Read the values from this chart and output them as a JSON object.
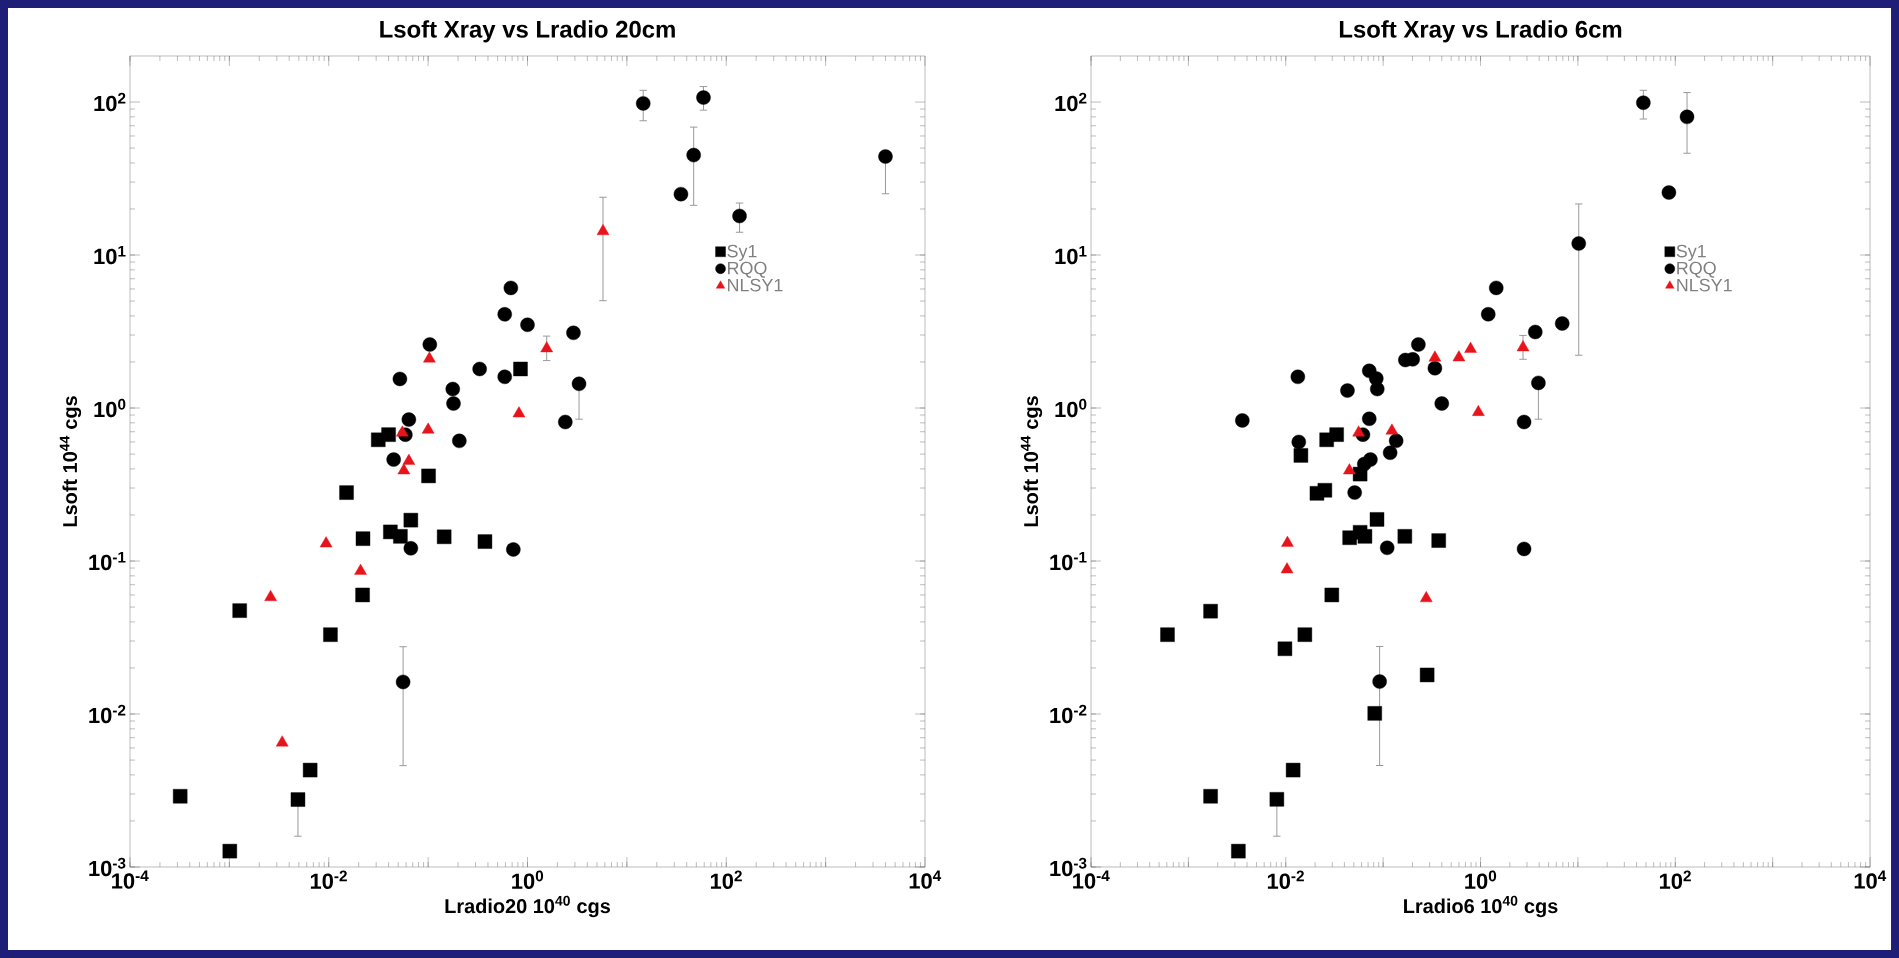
{
  "chart_data": [
    {
      "type": "scatter",
      "title": "Lsoft Xray vs Lradio 20cm",
      "xlabel": "Lradio20 10$^{40}$ cgs",
      "ylabel": "Lsoft 10$^{44}$ cgs",
      "log": "xy",
      "legend": "right",
      "xlim": [
        0.0001,
        10000
      ],
      "ylim": [
        0.001,
        200
      ],
      "xticks": [
        {
          "value": 0.0001,
          "label": "10$^{-4}$"
        },
        {
          "value": 0.001,
          "label": null
        },
        {
          "value": 0.01,
          "label": "10$^{-2}$"
        },
        {
          "value": 0.1,
          "label": null
        },
        {
          "value": 1,
          "label": "10$^{0}$"
        },
        {
          "value": 10,
          "label": null
        },
        {
          "value": 100,
          "label": "10$^{2}$"
        },
        {
          "value": 1000,
          "label": null
        },
        {
          "value": 10000,
          "label": "10$^{4}$"
        }
      ],
      "yticks": [
        {
          "value": 0.001,
          "label": "10$^{-3}$"
        },
        {
          "value": 0.01,
          "label": "10$^{-2}$"
        },
        {
          "value": 0.1,
          "label": "10$^{-1}$"
        },
        {
          "value": 1,
          "label": "10$^{0}$"
        },
        {
          "value": 10,
          "label": "10$^{1}$"
        },
        {
          "value": 100,
          "label": "10$^{2}$"
        }
      ],
      "series": [
        {
          "name": "Sy1",
          "color": "#000000",
          "marker": "square",
          "x": [
            0.85,
            0.0315,
            0.04,
            0.101,
            0.0151,
            0.0221,
            0.0417,
            0.0526,
            0.067,
            0.145,
            0.373,
            0.0219,
            0.00127,
            0.0104,
            0.0065,
            0.0049,
            0.00032,
            0.00101
          ],
          "values": [
            1.8,
            0.62,
            0.67,
            0.36,
            0.28,
            0.14,
            0.155,
            0.145,
            0.185,
            0.144,
            0.134,
            0.06,
            0.0474,
            0.033,
            0.0043,
            0.00276,
            0.0029,
            0.00127
          ],
          "errors": [
            null,
            null,
            null,
            null,
            null,
            null,
            null,
            null,
            null,
            null,
            null,
            null,
            null,
            null,
            null,
            [
              0.00158,
              0.00276
            ],
            null,
            null
          ]
        },
        {
          "name": "RQQ",
          "color": "#000000",
          "marker": "circle",
          "x": [
            14.6,
            59,
            47,
            35,
            136,
            0.68,
            0.59,
            1.0,
            2.9,
            0.104,
            0.33,
            0.59,
            0.052,
            0.177,
            3.3,
            0.18,
            2.4,
            0.064,
            0.059,
            0.206,
            0.045,
            0.067,
            0.72,
            0.056,
            4000
          ],
          "values": [
            98,
            107,
            45,
            25,
            18,
            6.1,
            4.1,
            3.5,
            3.1,
            2.6,
            1.8,
            1.6,
            1.55,
            1.33,
            1.44,
            1.07,
            0.81,
            0.84,
            0.67,
            0.61,
            0.46,
            0.121,
            0.119,
            0.0162,
            44
          ],
          "errors": [
            [
              75,
              120
            ],
            [
              88,
              127
            ],
            [
              21,
              69
            ],
            null,
            [
              14,
              22
            ],
            null,
            null,
            null,
            null,
            null,
            null,
            null,
            null,
            null,
            [
              0.84,
              1.44
            ],
            null,
            null,
            null,
            null,
            null,
            null,
            null,
            null,
            [
              0.00457,
              0.0277
            ],
            [
              25,
              44
            ]
          ]
        },
        {
          "name": "NLSY1",
          "color": "#e8141c",
          "marker": "triangle",
          "x": [
            5.75,
            1.56,
            0.103,
            0.82,
            0.1,
            0.064,
            0.057,
            0.055,
            0.0094,
            0.0209,
            0.0026,
            0.0034
          ],
          "values": [
            14.3,
            2.45,
            2.1,
            0.92,
            0.72,
            0.45,
            0.39,
            0.69,
            0.13,
            0.086,
            0.058,
            0.0065
          ],
          "errors": [
            [
              5.0,
              24
            ],
            [
              2.03,
              2.97
            ],
            null,
            null,
            null,
            null,
            null,
            null,
            null,
            null,
            null,
            null
          ]
        }
      ]
    },
    {
      "type": "scatter",
      "title": "Lsoft Xray vs Lradio 6cm",
      "xlabel": "Lradio6 10$^{40}$ cgs",
      "ylabel": "Lsoft 10$^{44}$ cgs",
      "log": "xy",
      "legend": "right",
      "xlim": [
        0.0001,
        10000
      ],
      "ylim": [
        0.001,
        200
      ],
      "xticks": [
        {
          "value": 0.0001,
          "label": "10$^{-4}$"
        },
        {
          "value": 0.001,
          "label": null
        },
        {
          "value": 0.01,
          "label": "10$^{-2}$"
        },
        {
          "value": 0.1,
          "label": null
        },
        {
          "value": 1,
          "label": "10$^{0}$"
        },
        {
          "value": 10,
          "label": null
        },
        {
          "value": 100,
          "label": "10$^{2}$"
        },
        {
          "value": 1000,
          "label": null
        },
        {
          "value": 10000,
          "label": "10$^{4}$"
        }
      ],
      "yticks": [
        {
          "value": 0.001,
          "label": "10$^{-3}$"
        },
        {
          "value": 0.01,
          "label": "10$^{-2}$"
        },
        {
          "value": 0.1,
          "label": "10$^{-1}$"
        },
        {
          "value": 1,
          "label": "10$^{0}$"
        },
        {
          "value": 10,
          "label": "10$^{1}$"
        },
        {
          "value": 100,
          "label": "10$^{2}$"
        }
      ],
      "series": [
        {
          "name": "Sy1",
          "color": "#000000",
          "marker": "square",
          "x": [
            0.0143,
            0.0263,
            0.0333,
            0.058,
            0.0209,
            0.0252,
            0.0865,
            0.0453,
            0.058,
            0.065,
            0.167,
            0.372,
            0.0297,
            0.00169,
            0.00061,
            0.0157,
            0.0098,
            0.283,
            0.082,
            0.0119,
            0.00169,
            0.0081,
            0.00326
          ],
          "values": [
            0.49,
            0.62,
            0.67,
            0.37,
            0.277,
            0.29,
            0.187,
            0.142,
            0.154,
            0.145,
            0.145,
            0.136,
            0.06,
            0.047,
            0.033,
            0.033,
            0.0267,
            0.018,
            0.0101,
            0.0043,
            0.0029,
            0.00277,
            0.00127
          ],
          "errors": [
            null,
            null,
            null,
            null,
            null,
            null,
            null,
            null,
            null,
            null,
            null,
            null,
            null,
            null,
            null,
            null,
            null,
            null,
            null,
            null,
            null,
            [
              0.00158,
              0.00277
            ],
            null
          ]
        },
        {
          "name": "RQQ",
          "color": "#000000",
          "marker": "circle",
          "x": [
            47,
            132,
            86,
            10.2,
            1.45,
            1.2,
            6.9,
            3.65,
            3.93,
            2.8,
            0.00358,
            0.0133,
            0.0136,
            0.043,
            0.072,
            0.085,
            0.087,
            0.169,
            0.201,
            0.23,
            0.34,
            0.4,
            0.072,
            0.062,
            0.136,
            0.118,
            0.074,
            0.064,
            0.051,
            0.11,
            2.8,
            0.092
          ],
          "values": [
            99,
            80,
            25.6,
            11.9,
            6.1,
            4.1,
            3.57,
            3.14,
            1.46,
            0.81,
            0.83,
            1.6,
            0.6,
            1.3,
            1.75,
            1.56,
            1.33,
            2.06,
            2.08,
            2.6,
            1.82,
            1.07,
            0.85,
            0.67,
            0.61,
            0.51,
            0.46,
            0.43,
            0.28,
            0.122,
            0.12,
            0.0163
          ],
          "errors": [
            [
              77,
              120
            ],
            [
              46,
              116
            ],
            null,
            [
              2.2,
              21.7
            ],
            null,
            null,
            null,
            null,
            [
              0.84,
              1.46
            ],
            null,
            null,
            null,
            null,
            null,
            null,
            null,
            null,
            null,
            null,
            null,
            null,
            null,
            null,
            null,
            null,
            null,
            null,
            null,
            null,
            null,
            null,
            [
              0.00458,
              0.0278
            ]
          ]
        },
        {
          "name": "NLSY1",
          "color": "#e8141c",
          "marker": "triangle",
          "x": [
            2.73,
            0.0104,
            0.0103,
            0.277,
            0.045,
            0.056,
            0.123,
            0.34,
            0.6,
            0.79,
            0.95
          ],
          "values": [
            2.49,
            0.131,
            0.088,
            0.057,
            0.39,
            0.69,
            0.71,
            2.13,
            2.14,
            2.43,
            0.94
          ],
          "errors": [
            [
              2.07,
              3.0
            ],
            null,
            null,
            null,
            null,
            null,
            null,
            null,
            null,
            null,
            null
          ]
        }
      ]
    }
  ]
}
